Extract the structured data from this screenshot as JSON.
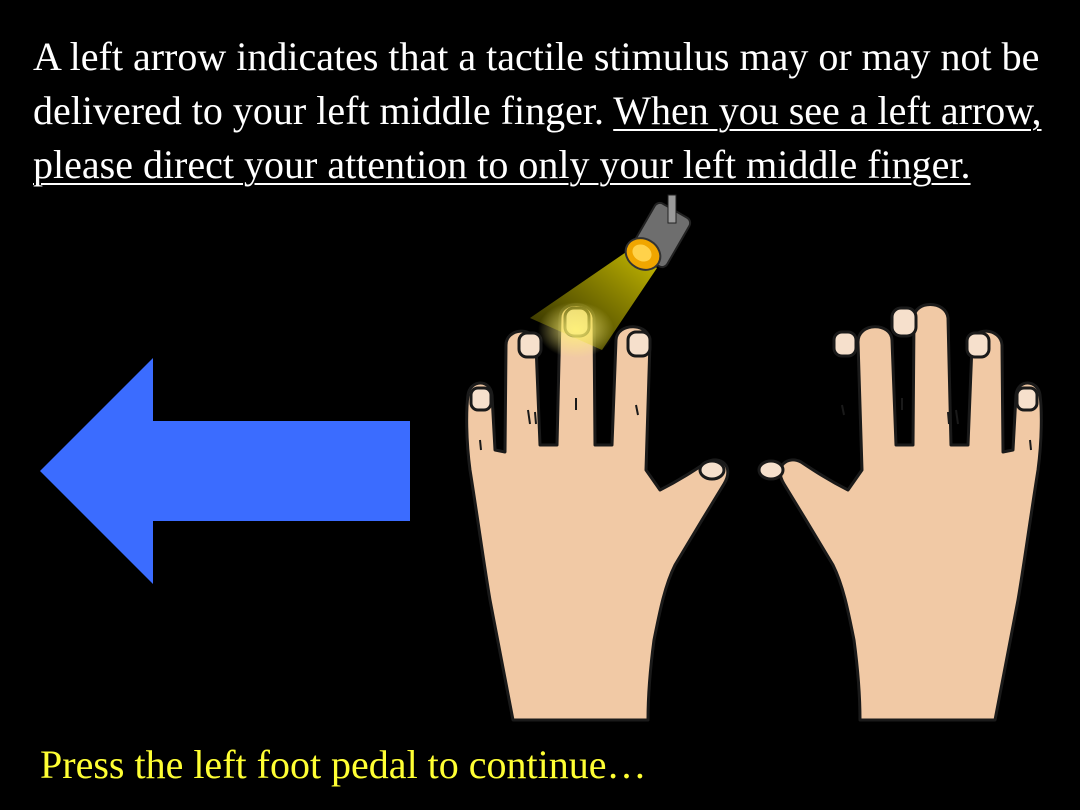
{
  "instruction": {
    "plain": "A left arrow indicates that a tactile stimulus may or may not be delivered to your left middle finger.",
    "emphasis": "When you see a left arrow, please direct your attention to only your left middle finger."
  },
  "cue": {
    "direction": "left",
    "arrow_color": "#3b6cff"
  },
  "spotlight": {
    "icon": "spotlight-icon",
    "target": "left middle finger",
    "beam_color": "#e8d800"
  },
  "hands": {
    "left": "left-hand-icon",
    "right": "right-hand-icon",
    "skin_color": "#f1c9a5"
  },
  "footer": {
    "continue_text": "Press the left foot pedal to continue…",
    "color": "#ffff33"
  },
  "colors": {
    "background": "#000000",
    "text": "#ffffff"
  }
}
